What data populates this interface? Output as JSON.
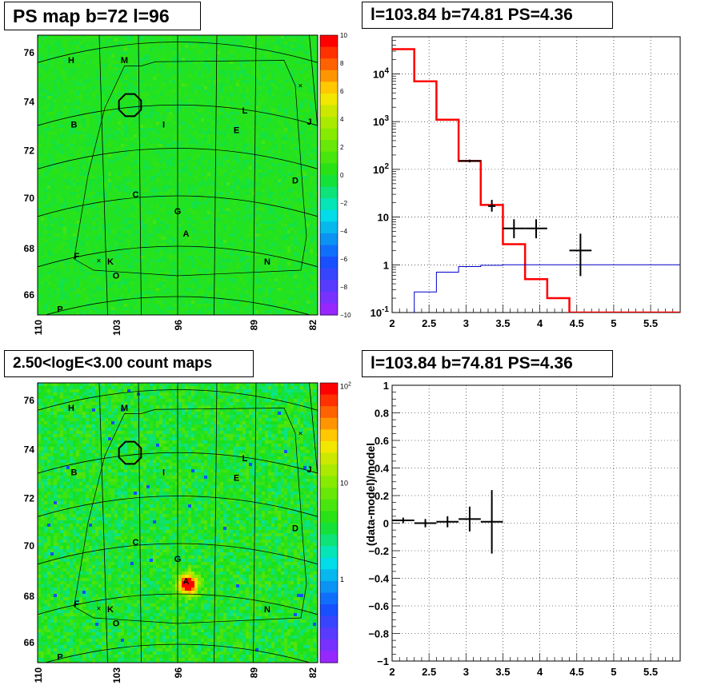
{
  "panels": {
    "ps_map_title": "PS map b=72 l=96",
    "spectrum_title": "l=103.84 b=74.81 PS=4.36",
    "countmap_title": "2.50<logE<3.00 count maps",
    "residual_title": "l=103.84 b=74.81 PS=4.36"
  },
  "colors": {
    "map_background": "#22e322",
    "model_line": "#ff0000",
    "background_line": "#0000cc",
    "data_points": "#000000",
    "grid": "#000000"
  },
  "chart_data": [
    {
      "type": "heatmap",
      "title": "PS map b=72 l=96",
      "x_ticks": [
        "110",
        "103",
        "96",
        "89",
        "82"
      ],
      "y_ticks": [
        "66",
        "68",
        "70",
        "72",
        "74",
        "76"
      ],
      "colorbar_ticks": [
        "10",
        "8",
        "6",
        "4",
        "2",
        "0",
        "−2",
        "−4",
        "−6",
        "−8",
        "−10"
      ],
      "colorbar_range": [
        -10,
        10
      ],
      "region_labels": [
        "H",
        "M",
        "B",
        "I",
        "L",
        "J",
        "E",
        "C",
        "G",
        "D",
        "A",
        "F",
        "K",
        "N",
        "O",
        "P"
      ],
      "markers": [
        "×",
        "×"
      ]
    },
    {
      "type": "line",
      "title": "l=103.84 b=74.81 PS=4.36",
      "xlim": [
        2,
        5.9
      ],
      "ylim": [
        0.1,
        60000
      ],
      "ylog": true,
      "x_ticks": [
        "2",
        "2.5",
        "3",
        "3.5",
        "4",
        "4.5",
        "5",
        "5.5"
      ],
      "y_ticks": [
        "10^-1",
        "1",
        "10",
        "10^2",
        "10^3",
        "10^4"
      ],
      "grid": true,
      "series": [
        {
          "style": "step",
          "color": "#ff0000",
          "edges": [
            2.0,
            2.3,
            2.6,
            2.9,
            3.2,
            3.5,
            3.8,
            4.1,
            4.4,
            5.9
          ],
          "values": [
            33000,
            7000,
            1100,
            150,
            18,
            2.7,
            0.5,
            0.2,
            0.1
          ]
        },
        {
          "style": "step",
          "color": "#0000cc",
          "edges": [
            2.3,
            2.6,
            2.9,
            3.2,
            3.5,
            5.9
          ],
          "values": [
            0.27,
            0.7,
            0.92,
            0.98,
            1.0
          ]
        },
        {
          "style": "errorbar",
          "color": "#000000",
          "points": [
            {
              "x": 3.05,
              "y": 150,
              "xerr": 0.15,
              "ylo": 140,
              "yhi": 160
            },
            {
              "x": 3.35,
              "y": 17,
              "xerr": 0.05,
              "ylo": 13,
              "yhi": 23
            },
            {
              "x": 3.65,
              "y": 5.8,
              "xerr": 0.15,
              "ylo": 3.6,
              "yhi": 9
            },
            {
              "x": 3.95,
              "y": 5.8,
              "xerr": 0.15,
              "ylo": 3.6,
              "yhi": 9
            },
            {
              "x": 4.55,
              "y": 2.0,
              "xerr": 0.15,
              "ylo": 0.58,
              "yhi": 4.5
            }
          ]
        }
      ]
    },
    {
      "type": "heatmap",
      "title": "2.50<logE<3.00 count maps",
      "x_ticks": [
        "110",
        "103",
        "96",
        "89",
        "82"
      ],
      "y_ticks": [
        "66",
        "68",
        "70",
        "72",
        "74",
        "76"
      ],
      "colorbar_ticks": [
        "10^2",
        "10",
        "1"
      ],
      "colorbar_log": true,
      "region_labels": [
        "H",
        "M",
        "B",
        "I",
        "L",
        "J",
        "E",
        "C",
        "G",
        "D",
        "A",
        "F",
        "K",
        "N",
        "O",
        "P"
      ],
      "markers": [
        "×",
        "×"
      ]
    },
    {
      "type": "scatter",
      "title": "l=103.84 b=74.81 PS=4.36",
      "ylabel": "(data-model)/model",
      "xlim": [
        2,
        5.9
      ],
      "ylim": [
        -1,
        1
      ],
      "x_ticks": [
        "2",
        "2.5",
        "3",
        "3.5",
        "4",
        "4.5",
        "5",
        "5.5"
      ],
      "y_ticks": [
        "1",
        "0.8",
        "0.6",
        "0.4",
        "0.2",
        "0",
        "−0.2",
        "−0.4",
        "−0.6",
        "−0.8",
        "−1"
      ],
      "grid": true,
      "points": [
        {
          "x": 2.15,
          "y": 0.02,
          "xerr": 0.15,
          "yerr": 0.02
        },
        {
          "x": 2.45,
          "y": 0.0,
          "xerr": 0.15,
          "yerr": 0.03
        },
        {
          "x": 2.75,
          "y": 0.01,
          "xerr": 0.15,
          "yerr": 0.04
        },
        {
          "x": 3.05,
          "y": 0.03,
          "xerr": 0.15,
          "yerr": 0.09
        },
        {
          "x": 3.35,
          "y": 0.01,
          "xerr": 0.15,
          "yerr": 0.23
        }
      ]
    }
  ]
}
